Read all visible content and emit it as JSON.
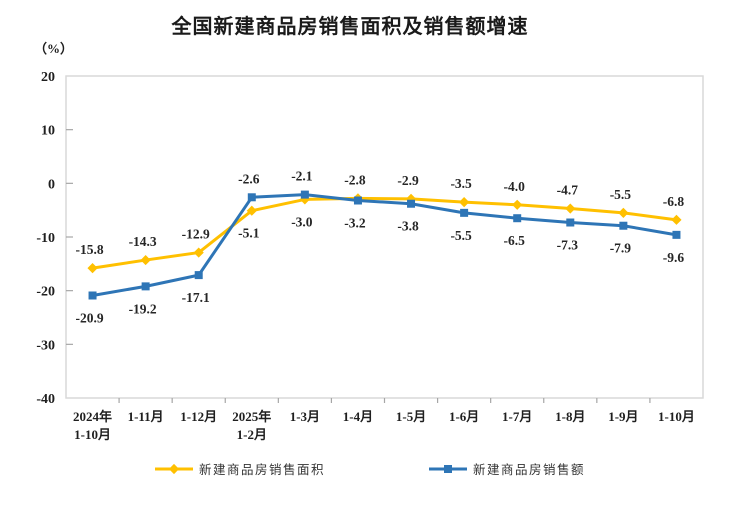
{
  "chart": {
    "title": "全国新建商品房销售面积及销售额增速",
    "unit_label": "（%）"
  },
  "legend": [
    {
      "label": "新建商品房销售面积",
      "color": "#FFC000",
      "marker": "diamond"
    },
    {
      "label": "新建商品房销售额",
      "color": "#2E75B6",
      "marker": "square"
    }
  ],
  "chart_data": {
    "type": "line",
    "title": "全国新建商品房销售面积及销售额增速",
    "unit": "%",
    "categories": [
      [
        "2024年",
        "1-10月"
      ],
      [
        "1-11月"
      ],
      [
        "1-12月"
      ],
      [
        "2025年",
        "1-2月"
      ],
      [
        "1-3月"
      ],
      [
        "1-4月"
      ],
      [
        "1-5月"
      ],
      [
        "1-6月"
      ],
      [
        "1-7月"
      ],
      [
        "1-8月"
      ],
      [
        "1-9月"
      ],
      [
        "1-10月"
      ]
    ],
    "series": [
      {
        "name": "新建商品房销售面积",
        "color": "#FFC000",
        "marker": "diamond",
        "values": [
          -15.8,
          -14.3,
          -12.9,
          -5.1,
          -3.0,
          -2.8,
          -2.9,
          -3.5,
          -4.0,
          -4.7,
          -5.5,
          -6.8
        ],
        "label_side": [
          "above",
          "above",
          "above",
          "below",
          "below",
          "above",
          "above",
          "above",
          "above",
          "above",
          "above",
          "above"
        ]
      },
      {
        "name": "新建商品房销售额",
        "color": "#2E75B6",
        "marker": "square",
        "values": [
          -20.9,
          -19.2,
          -17.1,
          -2.6,
          -2.1,
          -3.2,
          -3.8,
          -5.5,
          -6.5,
          -7.3,
          -7.9,
          -9.6
        ],
        "label_side": [
          "below",
          "below",
          "below",
          "above",
          "above",
          "below",
          "below",
          "below",
          "below",
          "below",
          "below",
          "below"
        ]
      }
    ],
    "y_ticks": [
      20,
      10,
      0,
      -10,
      -20,
      -30,
      -40
    ],
    "ylim": [
      -40,
      20
    ],
    "grid": false,
    "legend_position": "bottom",
    "plot_border_color": "#D9D9D9",
    "tick_color": "#A6A6A6"
  }
}
